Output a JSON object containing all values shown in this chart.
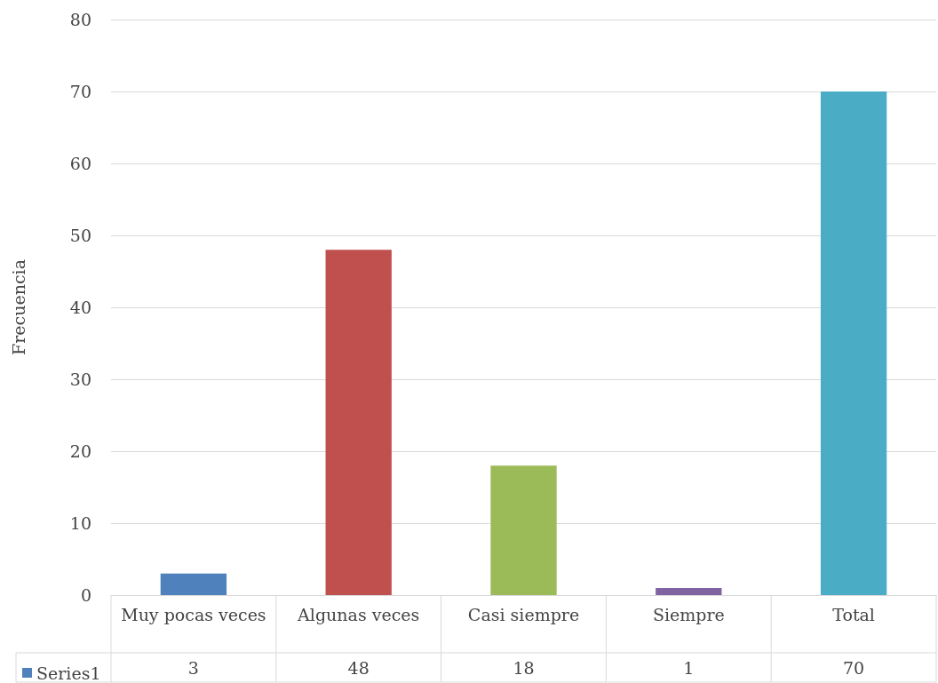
{
  "chart_data": {
    "type": "bar",
    "ylabel": "Frecuencia",
    "categories": [
      "Muy pocas veces",
      "Algunas veces",
      "Casi siempre",
      "Siempre",
      "Total"
    ],
    "series": [
      {
        "name": "Series1",
        "color": "#4f81bd",
        "colors": [
          "#4f81bd",
          "#c0504d",
          "#9bbb59",
          "#8064a2",
          "#4bacc6"
        ],
        "values": [
          3,
          48,
          18,
          1,
          70
        ]
      }
    ],
    "ylim": [
      0,
      80
    ],
    "yticks": [
      0,
      10,
      20,
      30,
      40,
      50,
      60,
      70,
      80
    ],
    "grid": "y",
    "data_labels": true,
    "legend": "bottom"
  }
}
